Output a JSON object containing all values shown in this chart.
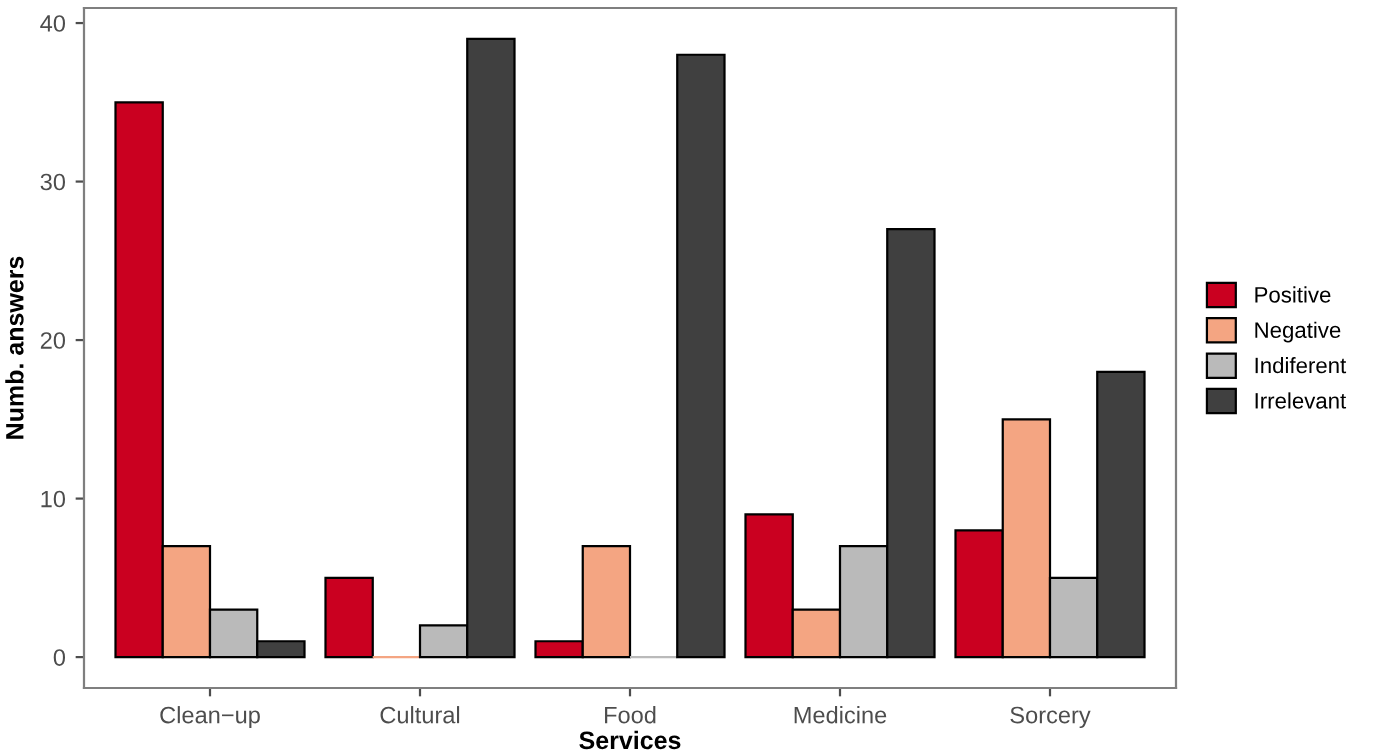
{
  "chart_data": {
    "type": "bar",
    "xlabel": "Services",
    "ylabel": "Numb. answers",
    "categories": [
      "Clean−up",
      "Cultural",
      "Food",
      "Medicine",
      "Sorcery"
    ],
    "series": [
      {
        "name": "Positive",
        "color": "#ca0020",
        "values": [
          35,
          5,
          1,
          9,
          8
        ]
      },
      {
        "name": "Negative",
        "color": "#f4a582",
        "values": [
          7,
          0,
          7,
          3,
          15
        ]
      },
      {
        "name": "Indiferent",
        "color": "#bababa",
        "values": [
          3,
          2,
          0,
          7,
          5
        ]
      },
      {
        "name": "Irrelevant",
        "color": "#404040",
        "values": [
          1,
          39,
          38,
          27,
          18
        ]
      }
    ],
    "ylim": [
      -1.95,
      40.95
    ],
    "yticks": [
      0,
      10,
      20,
      30,
      40
    ],
    "grid": false,
    "legend": "right"
  }
}
